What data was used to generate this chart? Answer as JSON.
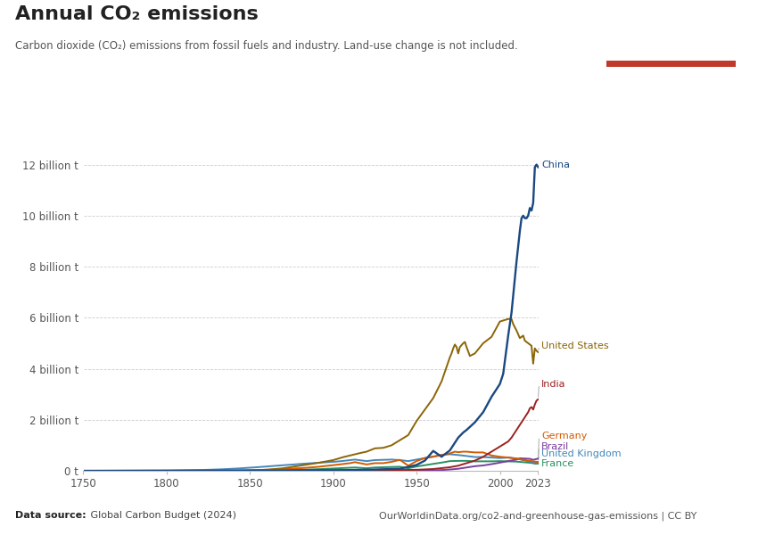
{
  "title": "Annual CO₂ emissions",
  "subtitle": "Carbon dioxide (CO₂) emissions from fossil fuels and industry. Land-use change is not included.",
  "datasource_bold": "Data source:",
  "datasource_rest": " Global Carbon Budget (2024)",
  "url": "OurWorldinData.org/co2-and-greenhouse-gas-emissions | CC BY",
  "background_color": "#ffffff",
  "ylabel_ticks": [
    "0 t",
    "2 billion t",
    "4 billion t",
    "6 billion t",
    "8 billion t",
    "10 billion t",
    "12 billion t"
  ],
  "ytick_values": [
    0,
    2000000000,
    4000000000,
    6000000000,
    8000000000,
    10000000000,
    12000000000
  ],
  "xmin": 1750,
  "xmax": 2023,
  "ymin": 0,
  "ymax": 13000000000,
  "grid_color": "#cccccc",
  "spine_color": "#bbbbbb",
  "tick_color": "#888888",
  "series": {
    "China": {
      "color": "#1a4880",
      "label_color": "#1a4880",
      "zorder": 10
    },
    "United States": {
      "color": "#8B6508",
      "label_color": "#8B6508",
      "zorder": 9
    },
    "India": {
      "color": "#9B2222",
      "label_color": "#9B2222",
      "zorder": 8
    },
    "Germany": {
      "color": "#d45a00",
      "label_color": "#d45a00",
      "zorder": 7
    },
    "Brazil": {
      "color": "#7b3fa0",
      "label_color": "#7b3fa0",
      "zorder": 6
    },
    "United Kingdom": {
      "color": "#4488bb",
      "label_color": "#4488bb",
      "zorder": 5
    },
    "France": {
      "color": "#2a9060",
      "label_color": "#2a9060",
      "zorder": 4
    }
  },
  "logo_bg": "#1d3557",
  "logo_red": "#c0392b"
}
